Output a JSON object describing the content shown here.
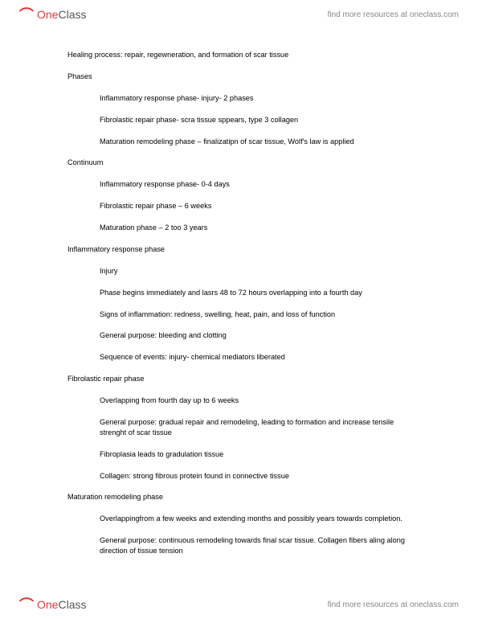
{
  "brand": {
    "logo_one": "One",
    "logo_class": "Class",
    "resources_text": "find more resources at oneclass.com"
  },
  "notes": {
    "l1": "Healing process: repair, regewneration, and formation of scar tissue",
    "l2": "Phases",
    "l3": "Inflammatory response phase- injury- 2 phases",
    "l4": "Fibrolastic repair phase- scra tissue sppears, type 3 collagen",
    "l5": "Maturation remodeling phase – finalizatipn of scar tissue, Wolf's law is applied",
    "l6": "Continuum",
    "l7": "Inflammatory response phase- 0-4 days",
    "l8": "Fibrolastic repair phase – 6 weeks",
    "l9": "Maturation phase – 2 too 3 years",
    "l10": "Inflammatory response phase",
    "l11": "Injury",
    "l12": "Phase begins immediately and lasrs 48 to 72 hours overlapping into a fourth day",
    "l13": "Signs of inflammation: redness, swelling, heat, pain, and loss of function",
    "l14": "General purpose: bleeding and clotting",
    "l15": "Sequence of events: injury- chemical mediators liberated",
    "l16": "Fibrolastic repair phase",
    "l17": "Overlapping from fourth day up to 6 weeks",
    "l18": "General purpose: gradual repair and remodeling, leading to formation and increase tensile strenght of scar tissue",
    "l19": "Fibroplasia leads to gradulation tissue",
    "l20": "Collagen: strong fibrous protein found in connective tissue",
    "l21": "Maturation remodeling phase",
    "l22": "Overlappingfrom a few weeks and extending months and possibly years towards completion.",
    "l23": "General purpose: continuous remodeling towards final scar tissue. Collagen fibers aling along direction of tissue tension"
  }
}
